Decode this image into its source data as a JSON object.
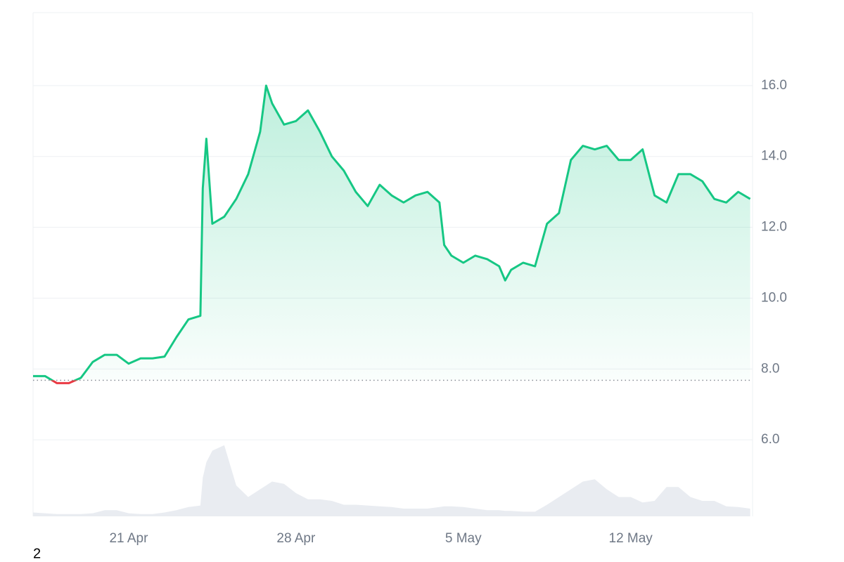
{
  "chart_data": {
    "type": "line",
    "x": [
      0,
      0.5,
      1,
      1.5,
      2,
      2.5,
      3,
      3.5,
      4,
      4.5,
      5,
      5.5,
      6,
      6.5,
      7,
      7.1,
      7.25,
      7.5,
      8,
      8.5,
      9,
      9.5,
      9.75,
      10,
      10.5,
      11,
      11.5,
      12,
      12.5,
      13,
      13.5,
      14,
      14.5,
      15,
      15.5,
      16,
      16.5,
      17,
      17.2,
      17.5,
      18,
      18.5,
      19,
      19.5,
      19.75,
      20,
      20.5,
      21,
      21.5,
      22,
      22.5,
      23,
      23.5,
      24,
      24.5,
      25,
      25.5,
      26,
      26.5,
      27,
      27.5,
      28,
      28.5,
      29,
      29.5,
      30
    ],
    "series": [
      {
        "color": "#16c784",
        "values": [
          7.8,
          7.8,
          7.6,
          7.6,
          7.75,
          8.2,
          8.4,
          8.4,
          8.15,
          8.3,
          8.3,
          8.35,
          8.9,
          9.4,
          9.5,
          13.1,
          14.5,
          12.1,
          12.3,
          12.8,
          13.5,
          14.7,
          16.0,
          15.5,
          14.9,
          15.0,
          15.3,
          14.7,
          14.0,
          13.6,
          13.0,
          12.6,
          13.2,
          12.9,
          12.7,
          12.9,
          13.0,
          12.7,
          11.5,
          11.2,
          11.0,
          11.2,
          11.1,
          10.9,
          10.5,
          10.8,
          11.0,
          10.9,
          12.1,
          12.4,
          13.9,
          14.3,
          14.2,
          14.3,
          13.9,
          13.9,
          14.2,
          12.9,
          12.7,
          13.5,
          13.5,
          13.3,
          12.8,
          12.7,
          13.0,
          12.8
        ]
      },
      {
        "color": "#e9ecf1",
        "axis": "y2",
        "values": [
          5,
          4,
          3,
          3,
          3,
          4,
          8,
          8,
          4,
          3,
          3,
          5,
          8,
          12,
          14,
          50,
          70,
          85,
          92,
          40,
          25,
          35,
          40,
          45,
          42,
          30,
          22,
          22,
          20,
          15,
          15,
          14,
          13,
          12,
          10,
          10,
          10,
          12,
          13,
          13,
          12,
          10,
          8,
          8,
          7,
          7,
          6,
          6,
          15,
          25,
          35,
          45,
          48,
          35,
          25,
          25,
          18,
          20,
          38,
          38,
          25,
          20,
          20,
          13,
          12,
          10
        ]
      }
    ],
    "negative_color": "#ea3943",
    "baseline": 7.68,
    "xlim": [
      0,
      30.1
    ],
    "xticks": [
      {
        "value": 4,
        "label": "21 Apr"
      },
      {
        "value": 11,
        "label": "28 Apr"
      },
      {
        "value": 18,
        "label": "5 May"
      },
      {
        "value": 25,
        "label": "12 May"
      }
    ],
    "ylim": [
      3.84,
      18.06
    ],
    "yticks": [
      {
        "value": 6,
        "label": "6.0"
      },
      {
        "value": 8,
        "label": "8.0"
      },
      {
        "value": 10,
        "label": "10.0"
      },
      {
        "value": 12,
        "label": "12.0"
      },
      {
        "value": 14,
        "label": "14.0"
      },
      {
        "value": 16,
        "label": "16.0"
      }
    ],
    "y2lim": [
      0,
      100
    ],
    "grid": true,
    "footnote": "2"
  }
}
